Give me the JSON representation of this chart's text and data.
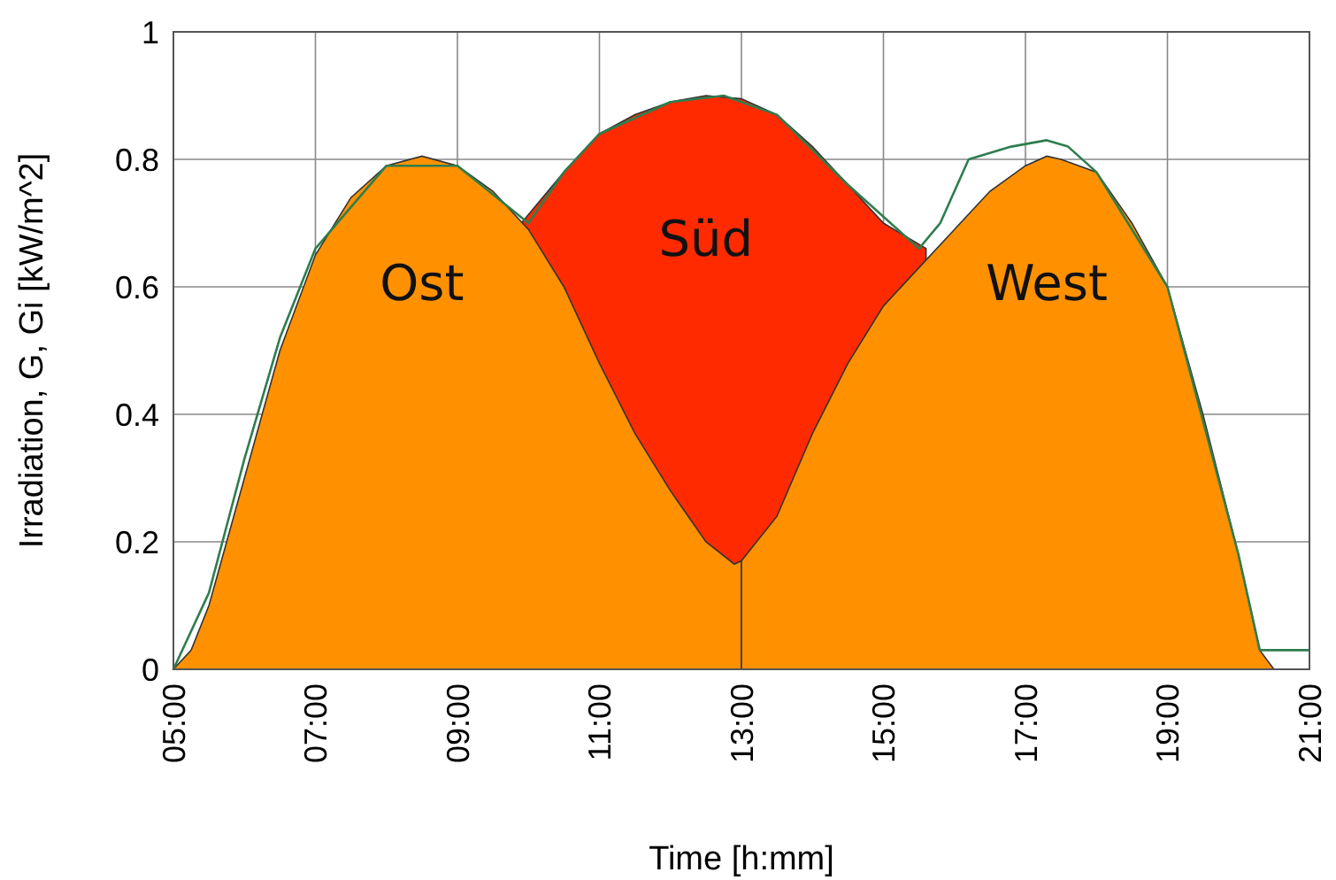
{
  "chart_data": {
    "type": "area",
    "xlabel": "Time [h:mm]",
    "ylabel": "Irradiation, G, Gi [kW/m^2]",
    "xlim": [
      5,
      21
    ],
    "ylim": [
      0,
      1
    ],
    "xticks": [
      {
        "value": 5,
        "label": "05:00"
      },
      {
        "value": 7,
        "label": "07:00"
      },
      {
        "value": 9,
        "label": "09:00"
      },
      {
        "value": 11,
        "label": "11:00"
      },
      {
        "value": 13,
        "label": "13:00"
      },
      {
        "value": 15,
        "label": "15:00"
      },
      {
        "value": 17,
        "label": "17:00"
      },
      {
        "value": 19,
        "label": "19:00"
      },
      {
        "value": 21,
        "label": "21:00"
      }
    ],
    "yticks": [
      0,
      0.2,
      0.4,
      0.6,
      0.8,
      1
    ],
    "grid": true,
    "series": [
      {
        "name": "Süd",
        "color": "#ff2a00",
        "x": [
          9.9,
          10.5,
          11,
          11.5,
          12,
          12.5,
          13,
          13.5,
          14,
          14.5,
          15,
          15.3,
          15.6
        ],
        "values": [
          0.7,
          0.78,
          0.84,
          0.87,
          0.89,
          0.9,
          0.895,
          0.87,
          0.82,
          0.76,
          0.7,
          0.68,
          0.66
        ]
      },
      {
        "name": "Ost",
        "color": "#ff9100",
        "x": [
          5,
          5.25,
          5.5,
          6,
          6.5,
          7,
          7.5,
          8,
          8.5,
          9,
          9.5,
          10,
          10.5,
          11,
          11.5,
          12,
          12.5,
          12.9,
          13
        ],
        "values": [
          0,
          0.03,
          0.1,
          0.3,
          0.5,
          0.65,
          0.74,
          0.79,
          0.805,
          0.79,
          0.75,
          0.69,
          0.6,
          0.48,
          0.37,
          0.28,
          0.2,
          0.165,
          0.17
        ]
      },
      {
        "name": "West",
        "color": "#ff9100",
        "x": [
          13,
          13.5,
          14,
          14.5,
          15,
          15.5,
          16,
          16.5,
          17,
          17.3,
          17.5,
          18,
          18.5,
          19,
          19.5,
          20,
          20.3,
          20.5
        ],
        "values": [
          0.17,
          0.24,
          0.37,
          0.48,
          0.57,
          0.63,
          0.69,
          0.75,
          0.79,
          0.805,
          0.8,
          0.78,
          0.7,
          0.6,
          0.4,
          0.18,
          0.03,
          0
        ]
      },
      {
        "type": "line",
        "color": "#2e7d4f",
        "x": [
          5,
          5.5,
          6,
          6.5,
          7,
          8,
          9,
          10,
          10.5,
          11,
          12,
          12.75,
          13.5,
          14.5,
          15.5,
          15.8,
          16.2,
          16.8,
          17.3,
          17.6,
          18,
          19,
          20,
          20.3,
          20.5,
          21
        ],
        "values": [
          0,
          0.12,
          0.33,
          0.52,
          0.66,
          0.79,
          0.79,
          0.7,
          0.78,
          0.84,
          0.89,
          0.9,
          0.87,
          0.76,
          0.66,
          0.7,
          0.8,
          0.82,
          0.83,
          0.82,
          0.78,
          0.6,
          0.18,
          0.03,
          0.03,
          0.03
        ]
      }
    ]
  }
}
